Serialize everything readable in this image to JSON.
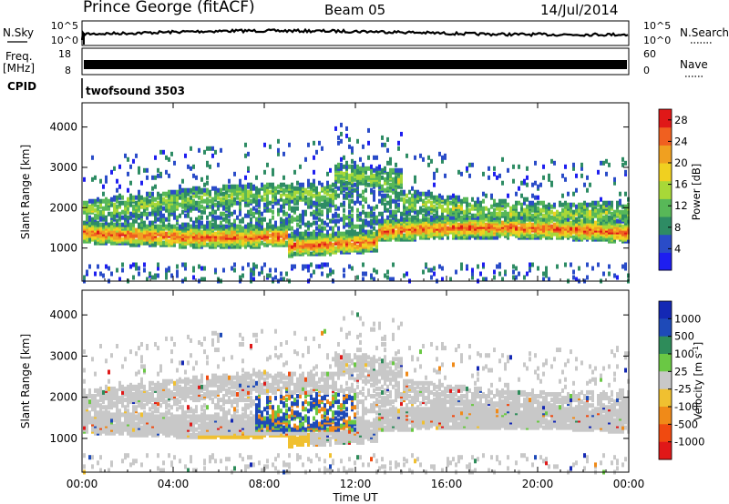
{
  "header": {
    "station": "Prince George (fitACF)",
    "beam": "Beam 05",
    "date": "14/Jul/2014"
  },
  "noise_panel": {
    "left_label": "N.Sky",
    "right_label": "N.Search",
    "tick_top": "10^5",
    "tick_bottom": "10^0"
  },
  "freq_panel": {
    "left_label_top": "Freq.",
    "left_label_unit": "[MHz]",
    "left_ticks": [
      "18",
      "8"
    ],
    "right_label": "Nave",
    "right_ticks": [
      "60",
      "0"
    ]
  },
  "cpid_panel": {
    "label": "CPID",
    "program": "twofsound 3503"
  },
  "colors": {
    "power": [
      "#1e1ef0",
      "#2a4cc8",
      "#2e8c64",
      "#58b858",
      "#a8d838",
      "#f0d020",
      "#f0a020",
      "#f06020",
      "#e01818"
    ],
    "velocity": [
      "#e01818",
      "#f04a10",
      "#f08a18",
      "#f0c030",
      "#c8c8c8",
      "#6ac844",
      "#2e8c5a",
      "#1e4ab8",
      "#1428b4"
    ]
  },
  "chart_data": [
    {
      "type": "heatmap",
      "title": "",
      "xlabel": "Time UT",
      "ylabel": "Slant Range [km]",
      "x_ticks": [
        "00:00",
        "04:00",
        "08:00",
        "12:00",
        "16:00",
        "20:00",
        "00:00"
      ],
      "xlim_hours": [
        0,
        24
      ],
      "y_ticks": [
        1000,
        2000,
        3000,
        4000
      ],
      "ylim_km": [
        180,
        4600
      ],
      "colorbar_label": "Power [dB]",
      "colorbar_ticks": [
        "4",
        "8",
        "12",
        "16",
        "20",
        "24",
        "28"
      ],
      "colorbar_range": [
        0,
        30
      ]
    },
    {
      "type": "heatmap",
      "title": "",
      "xlabel": "Time UT",
      "ylabel": "Slant Range [km]",
      "x_ticks": [
        "00:00",
        "04:00",
        "08:00",
        "12:00",
        "16:00",
        "20:00",
        "00:00"
      ],
      "xlim_hours": [
        0,
        24
      ],
      "y_ticks": [
        1000,
        2000,
        3000,
        4000
      ],
      "ylim_km": [
        180,
        4600
      ],
      "colorbar_label": "Velocity [m s-1]",
      "colorbar_ticks": [
        "1000",
        "500",
        "100",
        "25",
        "-25",
        "-100",
        "-500",
        "-1000"
      ]
    }
  ]
}
